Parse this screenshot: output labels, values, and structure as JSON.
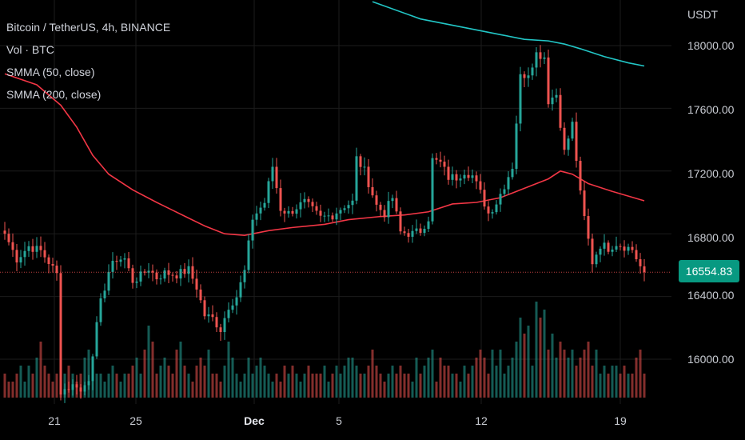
{
  "legend": {
    "symbol_line": "Bitcoin / TetherUS, 4h, BINANCE",
    "volume_line": "Vol · BTC",
    "smma50_line": "SMMA (50, close)",
    "smma200_line": "SMMA (200, close)"
  },
  "price_axis": {
    "currency": "USDT",
    "ticks": [
      "18000.00",
      "17600.00",
      "17200.00",
      "16800.00",
      "16400.00",
      "16000.00"
    ],
    "last_price": "16554.83"
  },
  "time_axis": {
    "ticks": [
      "21",
      "25",
      "Dec",
      "5",
      "12",
      "19"
    ]
  },
  "colors": {
    "up": "#26a69a",
    "down": "#ef5350",
    "smma50": "#f23645",
    "smma200": "#22c6c6",
    "last_price_bg": "#089981",
    "background": "#000000",
    "grid": "#1c1c1c"
  },
  "chart_data": {
    "type": "candlestick",
    "title": "Bitcoin / TetherUS, 4h, BINANCE",
    "ylabel": "USDT",
    "ylim": [
      15760,
      18260
    ],
    "grid": true,
    "legend_placement": "top-left",
    "last_price": 16554.83,
    "price_ticks": [
      18000,
      17600,
      17200,
      16800,
      16400,
      16000
    ],
    "anchors": [
      [
        0,
        16800
      ],
      [
        3,
        16640
      ],
      [
        6,
        16720
      ],
      [
        9,
        16690
      ],
      [
        11,
        16620
      ],
      [
        13,
        16540
      ],
      [
        14,
        15800
      ],
      [
        16,
        15820
      ],
      [
        18,
        15840
      ],
      [
        19,
        15790
      ],
      [
        21,
        15880
      ],
      [
        23,
        16210
      ],
      [
        24,
        16360
      ],
      [
        26,
        16560
      ],
      [
        28,
        16640
      ],
      [
        30,
        16640
      ],
      [
        32,
        16500
      ],
      [
        34,
        16530
      ],
      [
        36,
        16580
      ],
      [
        38,
        16520
      ],
      [
        40,
        16550
      ],
      [
        43,
        16540
      ],
      [
        46,
        16570
      ],
      [
        48,
        16460
      ],
      [
        50,
        16280
      ],
      [
        52,
        16260
      ],
      [
        54,
        16190
      ],
      [
        56,
        16340
      ],
      [
        58,
        16400
      ],
      [
        60,
        16560
      ],
      [
        62,
        16900
      ],
      [
        65,
        17000
      ],
      [
        67,
        17230
      ],
      [
        69,
        16960
      ],
      [
        71,
        16930
      ],
      [
        73,
        16970
      ],
      [
        75,
        17000
      ],
      [
        77,
        16950
      ],
      [
        79,
        16900
      ],
      [
        82,
        16920
      ],
      [
        85,
        16980
      ],
      [
        87,
        17000
      ],
      [
        88,
        17280
      ],
      [
        90,
        17200
      ],
      [
        93,
        16980
      ],
      [
        95,
        16930
      ],
      [
        97,
        17030
      ],
      [
        99,
        16810
      ],
      [
        102,
        16800
      ],
      [
        104,
        16820
      ],
      [
        106,
        16900
      ],
      [
        107,
        17270
      ],
      [
        109,
        17250
      ],
      [
        111,
        17160
      ],
      [
        113,
        17160
      ],
      [
        115,
        17200
      ],
      [
        117,
        17170
      ],
      [
        119,
        17060
      ],
      [
        121,
        16930
      ],
      [
        123,
        17000
      ],
      [
        125,
        17110
      ],
      [
        127,
        17230
      ],
      [
        129,
        17800
      ],
      [
        131,
        17830
      ],
      [
        133,
        17950
      ],
      [
        135,
        17930
      ],
      [
        136,
        17650
      ],
      [
        138,
        17690
      ],
      [
        140,
        17320
      ],
      [
        142,
        17500
      ],
      [
        144,
        17050
      ],
      [
        145,
        16900
      ],
      [
        147,
        16620
      ],
      [
        149,
        16730
      ],
      [
        151,
        16710
      ],
      [
        153,
        16740
      ],
      [
        155,
        16720
      ],
      [
        157,
        16700
      ],
      [
        159,
        16590
      ],
      [
        160,
        16554.83
      ]
    ],
    "volume_profile": [
      3,
      2,
      2,
      3,
      4,
      2,
      4,
      3,
      5,
      7,
      4,
      3,
      2,
      3,
      2,
      3,
      4,
      3,
      2,
      3,
      5,
      6,
      4,
      3,
      3,
      2,
      3,
      4,
      3,
      2,
      3,
      3,
      4,
      5,
      3,
      6,
      9,
      7,
      3,
      4,
      5,
      4,
      3,
      6,
      7,
      4,
      3,
      2,
      4,
      5,
      4,
      6,
      3,
      3,
      2,
      4,
      7,
      5,
      3,
      2,
      3,
      5,
      3,
      4,
      5,
      4,
      3,
      2,
      3,
      2,
      4,
      3,
      4,
      3,
      2,
      3,
      4,
      3,
      3,
      3,
      4,
      2,
      3,
      4,
      3,
      4,
      5,
      5,
      4,
      3,
      3,
      4,
      6,
      4,
      3,
      2,
      3,
      4,
      3,
      4,
      3,
      3,
      2,
      5,
      3,
      4,
      5,
      6,
      2,
      5,
      4,
      4,
      3,
      3,
      2,
      4,
      3,
      4,
      5,
      6,
      5,
      3,
      6,
      4,
      6,
      3,
      4,
      5,
      7,
      10,
      8,
      9,
      4,
      12,
      10,
      11,
      6,
      8,
      5,
      7,
      6,
      5,
      6,
      4,
      5,
      6,
      7,
      4,
      6,
      3,
      4,
      3,
      4,
      4,
      3,
      4,
      3,
      3,
      5,
      6,
      3
    ],
    "series": [
      {
        "name": "SMMA (50, close)",
        "values": [
          [
            0,
            17820
          ],
          [
            8,
            17750
          ],
          [
            14,
            17620
          ],
          [
            18,
            17480
          ],
          [
            22,
            17300
          ],
          [
            26,
            17180
          ],
          [
            32,
            17080
          ],
          [
            38,
            17000
          ],
          [
            42,
            16950
          ],
          [
            46,
            16900
          ],
          [
            50,
            16850
          ],
          [
            55,
            16800
          ],
          [
            60,
            16790
          ],
          [
            66,
            16820
          ],
          [
            72,
            16840
          ],
          [
            80,
            16860
          ],
          [
            86,
            16890
          ],
          [
            94,
            16910
          ],
          [
            100,
            16920
          ],
          [
            106,
            16940
          ],
          [
            112,
            16990
          ],
          [
            118,
            17000
          ],
          [
            124,
            17030
          ],
          [
            130,
            17090
          ],
          [
            136,
            17150
          ],
          [
            139,
            17200
          ],
          [
            142,
            17180
          ],
          [
            146,
            17120
          ],
          [
            152,
            17070
          ],
          [
            160,
            17010
          ]
        ]
      },
      {
        "name": "SMMA (200, close)",
        "values": [
          [
            92,
            18280
          ],
          [
            104,
            18170
          ],
          [
            116,
            18110
          ],
          [
            124,
            18070
          ],
          [
            130,
            18040
          ],
          [
            136,
            18030
          ],
          [
            140,
            18010
          ],
          [
            144,
            17980
          ],
          [
            150,
            17930
          ],
          [
            156,
            17890
          ],
          [
            160,
            17870
          ]
        ]
      }
    ]
  }
}
